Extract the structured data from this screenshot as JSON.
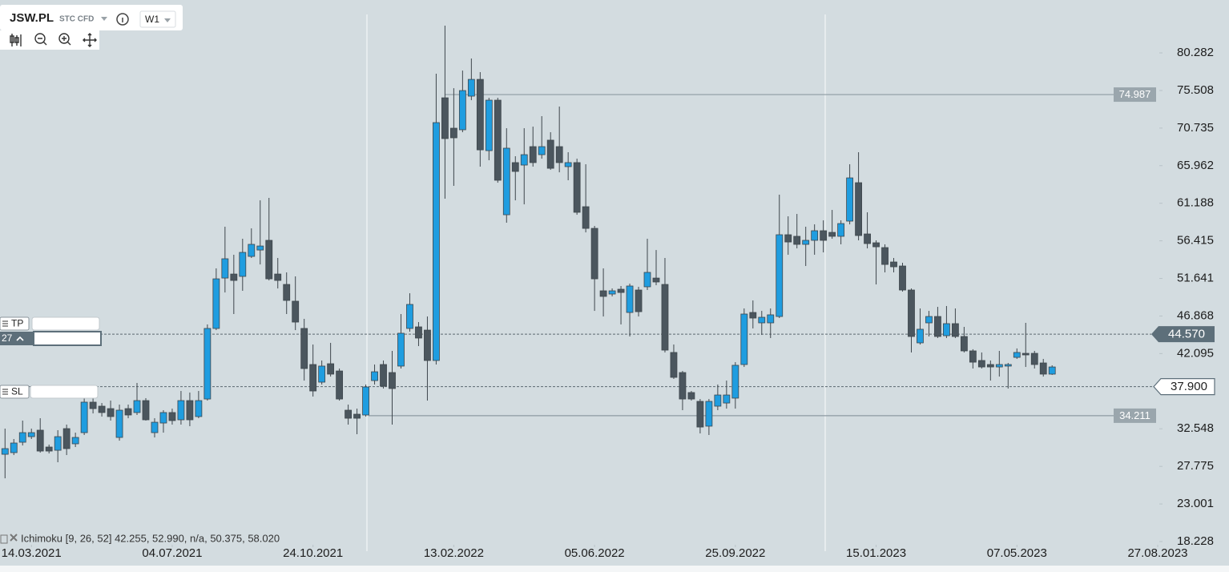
{
  "header": {
    "symbol": "JSW.PL",
    "instrument_type": "STC CFD",
    "timeframe": "W1"
  },
  "order_panel": {
    "tp": "TP",
    "sl": "SL",
    "tp_value": "27"
  },
  "chart_data": {
    "type": "candlestick",
    "indicator_label": "Ichimoku [9, 26, 52] 42.255, 52.990, n/a, 50.375, 58.020",
    "up_color": "#1f9de0",
    "down_color": "#4b565e",
    "x": [
      "21.02.2021",
      "28.02.2021",
      "07.03.2021",
      "14.03.2021",
      "21.03.2021",
      "28.03.2021",
      "04.04.2021",
      "11.04.2021",
      "18.04.2021",
      "25.04.2021",
      "02.05.2021",
      "09.05.2021",
      "16.05.2021",
      "23.05.2021",
      "30.05.2021",
      "06.06.2021",
      "13.06.2021",
      "20.06.2021",
      "27.06.2021",
      "04.07.2021",
      "11.07.2021",
      "18.07.2021",
      "25.07.2021",
      "01.08.2021",
      "08.08.2021",
      "15.08.2021",
      "22.08.2021",
      "29.08.2021",
      "05.09.2021",
      "12.09.2021",
      "19.09.2021",
      "26.09.2021",
      "03.10.2021",
      "10.10.2021",
      "17.10.2021",
      "24.10.2021",
      "31.10.2021",
      "07.11.2021",
      "14.11.2021",
      "21.11.2021",
      "28.11.2021",
      "05.12.2021",
      "12.12.2021",
      "19.12.2021",
      "26.12.2021",
      "02.01.2022",
      "09.01.2022",
      "16.01.2022",
      "23.01.2022",
      "30.01.2022",
      "06.02.2022",
      "13.02.2022",
      "20.02.2022",
      "27.02.2022",
      "06.03.2022",
      "13.03.2022",
      "20.03.2022",
      "27.03.2022",
      "03.04.2022",
      "10.04.2022",
      "17.04.2022",
      "24.04.2022",
      "01.05.2022",
      "08.05.2022",
      "15.05.2022",
      "22.05.2022",
      "29.05.2022",
      "05.06.2022",
      "12.06.2022",
      "19.06.2022",
      "26.06.2022",
      "03.07.2022",
      "10.07.2022",
      "17.07.2022",
      "24.07.2022",
      "31.07.2022",
      "07.08.2022",
      "14.08.2022",
      "21.08.2022",
      "28.08.2022",
      "04.09.2022",
      "11.09.2022",
      "18.09.2022",
      "25.09.2022",
      "02.10.2022",
      "09.10.2022",
      "16.10.2022",
      "23.10.2022",
      "30.10.2022",
      "06.11.2022",
      "13.11.2022",
      "20.11.2022",
      "27.11.2022",
      "04.12.2022",
      "11.12.2022",
      "18.12.2022",
      "25.12.2022",
      "01.01.2023",
      "08.01.2023",
      "15.01.2023",
      "22.01.2023",
      "29.01.2023",
      "05.02.2023",
      "12.02.2023",
      "19.02.2023",
      "26.02.2023",
      "05.03.2023",
      "12.03.2023",
      "19.03.2023",
      "26.03.2023",
      "02.04.2023",
      "09.04.2023",
      "16.04.2023",
      "23.04.2023",
      "30.04.2023",
      "07.05.2023",
      "14.05.2023",
      "21.05.2023",
      "28.05.2023",
      "04.06.2023"
    ],
    "open": [
      29.31,
      29.52,
      30.84,
      31.55,
      32.37,
      30.23,
      29.82,
      32.57,
      30.64,
      32.06,
      35.93,
      35.42,
      35.11,
      31.45,
      35.11,
      34.61,
      36.13,
      32.06,
      33.28,
      34.61,
      33.69,
      36.13,
      34.1,
      36.33,
      45.29,
      51.69,
      52.2,
      51.9,
      54.44,
      55.25,
      56.48,
      52.2,
      50.88,
      48.75,
      45.29,
      40.71,
      38.47,
      40.81,
      39.89,
      34.91,
      34.4,
      34.3,
      38.67,
      40.71,
      39.69,
      40.51,
      45.29,
      45.49,
      45.08,
      41.22,
      74.58,
      70.72,
      70.52,
      74.79,
      76.92,
      67.87,
      74.28,
      59.73,
      66.35,
      66.04,
      68.38,
      67.36,
      69.2,
      68.38,
      65.84,
      66.35,
      60.75,
      58.0,
      50.07,
      49.66,
      50.27,
      47.32,
      50.17,
      50.58,
      51.69,
      50.88,
      42.24,
      39.69,
      37.15,
      36.03,
      32.88,
      35.42,
      35.82,
      36.44,
      40.71,
      47.32,
      46.0,
      46.0,
      46.81,
      57.19,
      56.99,
      55.97,
      56.48,
      57.7,
      57.49,
      56.99,
      58.92,
      63.8,
      57.29,
      56.17,
      55.56,
      53.73,
      53.22,
      50.17,
      43.46,
      46.0,
      46.81,
      44.37,
      45.9,
      44.27,
      42.44,
      41.22,
      40.71,
      40.4,
      40.51,
      41.62,
      42.13,
      42.13,
      40.91,
      39.49
    ],
    "high": [
      32.57,
      31.25,
      33.59,
      32.57,
      33.89,
      30.54,
      32.37,
      33.08,
      32.06,
      36.64,
      36.64,
      35.82,
      36.13,
      35.62,
      35.62,
      38.37,
      36.44,
      33.89,
      34.91,
      35.11,
      37.35,
      37.15,
      37.35,
      45.8,
      52.92,
      58.21,
      54.65,
      56.68,
      58.0,
      61.56,
      61.87,
      54.24,
      52.41,
      51.9,
      46.51,
      43.25,
      41.22,
      43.46,
      40.2,
      35.62,
      35.11,
      38.17,
      40.71,
      41.22,
      42.44,
      47.12,
      49.76,
      46.1,
      46.81,
      77.64,
      83.74,
      75.8,
      78.04,
      79.57,
      77.84,
      74.58,
      74.58,
      70.72,
      67.16,
      70.72,
      70.92,
      72.25,
      70.21,
      73.47,
      67.67,
      66.85,
      66.14,
      58.31,
      52.92,
      50.37,
      50.68,
      50.98,
      50.58,
      56.68,
      55.25,
      54.24,
      43.25,
      39.89,
      37.35,
      36.33,
      36.33,
      38.17,
      38.67,
      41.01,
      47.83,
      48.85,
      47.52,
      47.83,
      62.28,
      59.53,
      59.83,
      58.21,
      58.51,
      59.02,
      60.34,
      59.02,
      66.14,
      67.67,
      60.04,
      56.48,
      55.97,
      54.24,
      53.63,
      50.37,
      47.83,
      47.52,
      48.03,
      48.14,
      47.83,
      45.49,
      42.65,
      42.24,
      41.22,
      42.44,
      40.91,
      42.75,
      46.0,
      42.44,
      41.42,
      40.61
    ],
    "low": [
      26.26,
      29.21,
      30.43,
      31.25,
      29.52,
      29.42,
      28.3,
      29.21,
      30.23,
      31.76,
      34.5,
      34.1,
      33.59,
      31.04,
      33.89,
      34.3,
      33.59,
      31.45,
      32.06,
      33.08,
      33.08,
      32.88,
      33.89,
      36.13,
      45.08,
      49.86,
      47.12,
      50.07,
      54.24,
      53.42,
      51.39,
      50.37,
      47.12,
      45.08,
      38.67,
      36.64,
      38.17,
      39.18,
      36.13,
      33.08,
      31.86,
      34.1,
      38.17,
      37.66,
      33.08,
      40.2,
      44.88,
      43.05,
      36.13,
      40.71,
      61.77,
      63.4,
      70.21,
      74.28,
      65.84,
      66.65,
      63.8,
      58.72,
      61.56,
      61.05,
      65.84,
      66.85,
      65.43,
      65.12,
      64.11,
      59.73,
      57.49,
      47.52,
      46.81,
      49.36,
      45.8,
      44.27,
      46.81,
      50.17,
      50.78,
      42.24,
      38.88,
      34.91,
      36.13,
      31.96,
      31.76,
      34.91,
      35.11,
      35.11,
      40.4,
      45.29,
      44.47,
      44.07,
      46.61,
      54.65,
      55.46,
      53.22,
      54.65,
      54.95,
      56.68,
      55.97,
      58.51,
      56.48,
      55.46,
      50.88,
      52.41,
      52.41,
      49.97,
      42.24,
      43.25,
      44.27,
      44.07,
      44.07,
      44.07,
      42.24,
      40.2,
      40.2,
      38.67,
      39.18,
      37.66,
      41.42,
      40.4,
      40.2,
      39.18,
      39.39
    ],
    "close": [
      30.03,
      30.74,
      32.06,
      32.06,
      29.72,
      29.72,
      31.55,
      30.03,
      31.45,
      35.93,
      35.11,
      34.61,
      34.1,
      34.91,
      34.3,
      36.13,
      33.69,
      33.38,
      34.61,
      33.59,
      36.13,
      33.69,
      36.13,
      45.29,
      51.59,
      54.14,
      51.39,
      54.95,
      55.97,
      55.76,
      51.59,
      51.39,
      48.85,
      46.1,
      40.2,
      37.35,
      40.51,
      39.49,
      36.33,
      33.89,
      33.89,
      37.86,
      39.79,
      37.96,
      37.66,
      44.68,
      48.34,
      44.07,
      41.22,
      71.43,
      69.4,
      69.5,
      75.5,
      76.92,
      67.97,
      74.28,
      64.11,
      68.18,
      65.23,
      67.36,
      66.35,
      68.38,
      65.63,
      66.35,
      66.35,
      60.04,
      58.0,
      51.59,
      49.36,
      50.07,
      49.86,
      50.68,
      47.42,
      52.41,
      51.19,
      42.54,
      39.08,
      36.33,
      36.33,
      32.77,
      36.03,
      36.84,
      36.84,
      40.61,
      47.12,
      46.61,
      46.71,
      47.02,
      57.19,
      56.27,
      55.97,
      56.48,
      57.7,
      56.48,
      56.99,
      58.61,
      64.41,
      57.09,
      56.07,
      55.66,
      53.42,
      53.12,
      50.17,
      44.27,
      45.19,
      46.81,
      44.27,
      45.9,
      44.27,
      42.44,
      41.01,
      40.4,
      40.4,
      40.71,
      40.71,
      42.24,
      41.93,
      40.71,
      39.49,
      40.4
    ],
    "xlim": [
      "17.02.2021",
      "27.08.2023"
    ],
    "xticks": [
      "14.03.2021",
      "04.07.2021",
      "24.10.2021",
      "13.02.2022",
      "05.06.2022",
      "25.09.2022",
      "15.01.2023",
      "07.05.2023",
      "27.08.2023"
    ],
    "ylim": [
      17.82,
      87.0
    ],
    "yticks": [
      18.228,
      23.001,
      27.775,
      32.548,
      42.095,
      46.868,
      51.641,
      56.415,
      61.188,
      65.962,
      70.735,
      75.508,
      80.282
    ],
    "levels": [
      74.987,
      34.211
    ],
    "current_price": {
      "value": 44.57,
      "label": "44.570"
    },
    "stop_level": {
      "value": 37.9,
      "label": "37.900"
    }
  }
}
